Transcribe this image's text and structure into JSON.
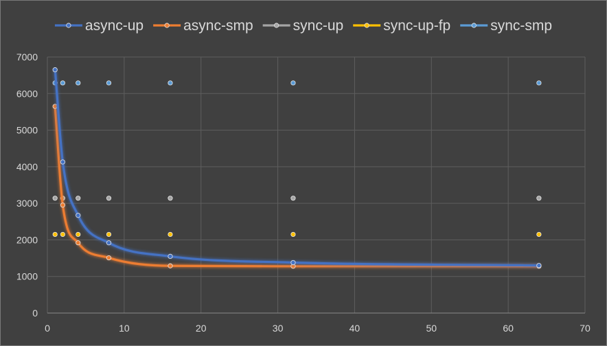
{
  "chart_data": {
    "type": "scatter",
    "title": "",
    "xlabel": "",
    "ylabel": "",
    "xlim": [
      0,
      70
    ],
    "ylim": [
      0,
      7000
    ],
    "x_ticks": [
      0,
      10,
      20,
      30,
      40,
      50,
      60,
      70
    ],
    "y_ticks": [
      0,
      1000,
      2000,
      3000,
      4000,
      5000,
      6000,
      7000
    ],
    "grid": true,
    "legend": "top",
    "smooth": true,
    "series": [
      {
        "name": "async-up",
        "color": "#4472C4",
        "points": [
          [
            1,
            6650
          ],
          [
            2,
            4130
          ],
          [
            4,
            2670
          ],
          [
            8,
            1920
          ],
          [
            16,
            1550
          ],
          [
            32,
            1380
          ],
          [
            64,
            1300
          ]
        ]
      },
      {
        "name": "async-smp",
        "color": "#ED7D31",
        "points": [
          [
            1,
            5650
          ],
          [
            2,
            2950
          ],
          [
            4,
            1920
          ],
          [
            8,
            1510
          ],
          [
            16,
            1290
          ],
          [
            32,
            1280
          ],
          [
            64,
            1280
          ]
        ]
      },
      {
        "name": "sync-up",
        "color": "#A5A5A5",
        "points": [
          [
            1,
            3140
          ],
          [
            2,
            3140
          ],
          [
            4,
            3140
          ],
          [
            8,
            3140
          ],
          [
            16,
            3140
          ],
          [
            32,
            3140
          ],
          [
            64,
            3140
          ]
        ]
      },
      {
        "name": "sync-up-fp",
        "color": "#FFC000",
        "points": [
          [
            1,
            2150
          ],
          [
            2,
            2150
          ],
          [
            4,
            2150
          ],
          [
            8,
            2150
          ],
          [
            16,
            2150
          ],
          [
            32,
            2150
          ],
          [
            64,
            2150
          ]
        ]
      },
      {
        "name": "sync-smp",
        "color": "#5B9BD5",
        "points": [
          [
            1,
            6290
          ],
          [
            2,
            6290
          ],
          [
            4,
            6290
          ],
          [
            8,
            6290
          ],
          [
            16,
            6290
          ],
          [
            32,
            6290
          ],
          [
            64,
            6290
          ]
        ]
      }
    ]
  }
}
